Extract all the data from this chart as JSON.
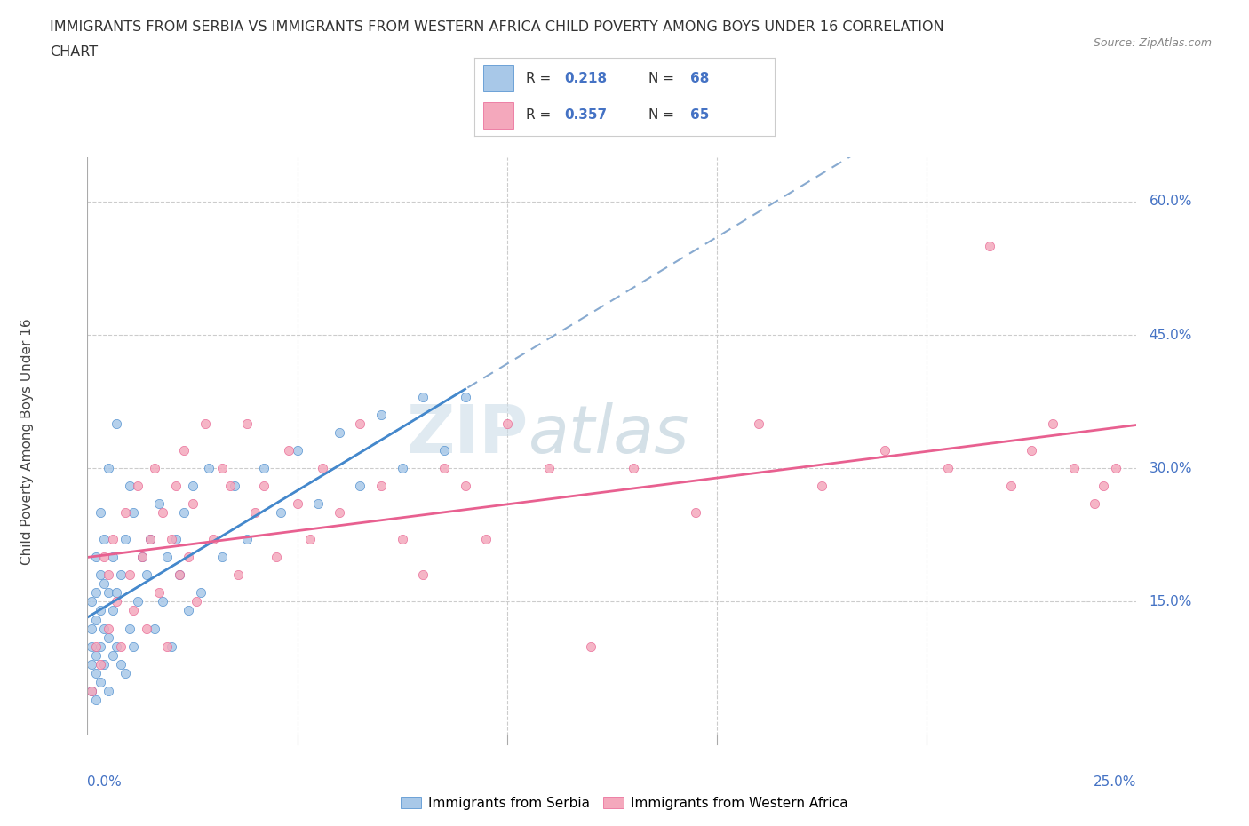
{
  "title_line1": "IMMIGRANTS FROM SERBIA VS IMMIGRANTS FROM WESTERN AFRICA CHILD POVERTY AMONG BOYS UNDER 16 CORRELATION",
  "title_line2": "CHART",
  "source": "Source: ZipAtlas.com",
  "ylabel_label": "Child Poverty Among Boys Under 16",
  "legend_serbia": "Immigrants from Serbia",
  "legend_w_africa": "Immigrants from Western Africa",
  "R_serbia": "0.218",
  "N_serbia": "68",
  "R_w_africa": "0.357",
  "N_w_africa": "65",
  "color_serbia": "#a8c8e8",
  "color_w_africa": "#f4a8bc",
  "line_serbia_color": "#4488cc",
  "line_w_africa_color": "#e86090",
  "dashed_line_color": "#88aad0",
  "grid_color": "#cccccc",
  "tick_label_color": "#4472c4",
  "y_tick_values": [
    0.15,
    0.3,
    0.45,
    0.6
  ],
  "y_tick_labels": [
    "15.0%",
    "30.0%",
    "45.0%",
    "60.0%"
  ],
  "x_tick_values": [
    0.05,
    0.1,
    0.15,
    0.2
  ],
  "xlim": [
    0,
    0.25
  ],
  "ylim": [
    0,
    0.65
  ],
  "serbia_x": [
    0.001,
    0.001,
    0.001,
    0.001,
    0.001,
    0.002,
    0.002,
    0.002,
    0.002,
    0.002,
    0.002,
    0.003,
    0.003,
    0.003,
    0.003,
    0.003,
    0.004,
    0.004,
    0.004,
    0.004,
    0.005,
    0.005,
    0.005,
    0.005,
    0.006,
    0.006,
    0.006,
    0.007,
    0.007,
    0.007,
    0.008,
    0.008,
    0.009,
    0.009,
    0.01,
    0.01,
    0.011,
    0.011,
    0.012,
    0.013,
    0.014,
    0.015,
    0.016,
    0.017,
    0.018,
    0.019,
    0.02,
    0.021,
    0.022,
    0.023,
    0.024,
    0.025,
    0.027,
    0.029,
    0.032,
    0.035,
    0.038,
    0.042,
    0.046,
    0.05,
    0.055,
    0.06,
    0.065,
    0.07,
    0.075,
    0.08,
    0.085,
    0.09
  ],
  "serbia_y": [
    0.05,
    0.08,
    0.1,
    0.12,
    0.15,
    0.04,
    0.07,
    0.09,
    0.13,
    0.16,
    0.2,
    0.06,
    0.1,
    0.14,
    0.18,
    0.25,
    0.08,
    0.12,
    0.17,
    0.22,
    0.05,
    0.11,
    0.16,
    0.3,
    0.09,
    0.14,
    0.2,
    0.1,
    0.16,
    0.35,
    0.08,
    0.18,
    0.07,
    0.22,
    0.12,
    0.28,
    0.1,
    0.25,
    0.15,
    0.2,
    0.18,
    0.22,
    0.12,
    0.26,
    0.15,
    0.2,
    0.1,
    0.22,
    0.18,
    0.25,
    0.14,
    0.28,
    0.16,
    0.3,
    0.2,
    0.28,
    0.22,
    0.3,
    0.25,
    0.32,
    0.26,
    0.34,
    0.28,
    0.36,
    0.3,
    0.38,
    0.32,
    0.38
  ],
  "w_africa_x": [
    0.001,
    0.002,
    0.003,
    0.004,
    0.005,
    0.005,
    0.006,
    0.007,
    0.008,
    0.009,
    0.01,
    0.011,
    0.012,
    0.013,
    0.014,
    0.015,
    0.016,
    0.017,
    0.018,
    0.019,
    0.02,
    0.021,
    0.022,
    0.023,
    0.024,
    0.025,
    0.026,
    0.028,
    0.03,
    0.032,
    0.034,
    0.036,
    0.038,
    0.04,
    0.042,
    0.045,
    0.048,
    0.05,
    0.053,
    0.056,
    0.06,
    0.065,
    0.07,
    0.075,
    0.08,
    0.085,
    0.09,
    0.095,
    0.1,
    0.11,
    0.12,
    0.13,
    0.145,
    0.16,
    0.175,
    0.19,
    0.205,
    0.215,
    0.22,
    0.225,
    0.23,
    0.235,
    0.24,
    0.242,
    0.245
  ],
  "w_africa_y": [
    0.05,
    0.1,
    0.08,
    0.2,
    0.12,
    0.18,
    0.22,
    0.15,
    0.1,
    0.25,
    0.18,
    0.14,
    0.28,
    0.2,
    0.12,
    0.22,
    0.3,
    0.16,
    0.25,
    0.1,
    0.22,
    0.28,
    0.18,
    0.32,
    0.2,
    0.26,
    0.15,
    0.35,
    0.22,
    0.3,
    0.28,
    0.18,
    0.35,
    0.25,
    0.28,
    0.2,
    0.32,
    0.26,
    0.22,
    0.3,
    0.25,
    0.35,
    0.28,
    0.22,
    0.18,
    0.3,
    0.28,
    0.22,
    0.35,
    0.3,
    0.1,
    0.3,
    0.25,
    0.35,
    0.28,
    0.32,
    0.3,
    0.55,
    0.28,
    0.32,
    0.35,
    0.3,
    0.26,
    0.28,
    0.3
  ]
}
